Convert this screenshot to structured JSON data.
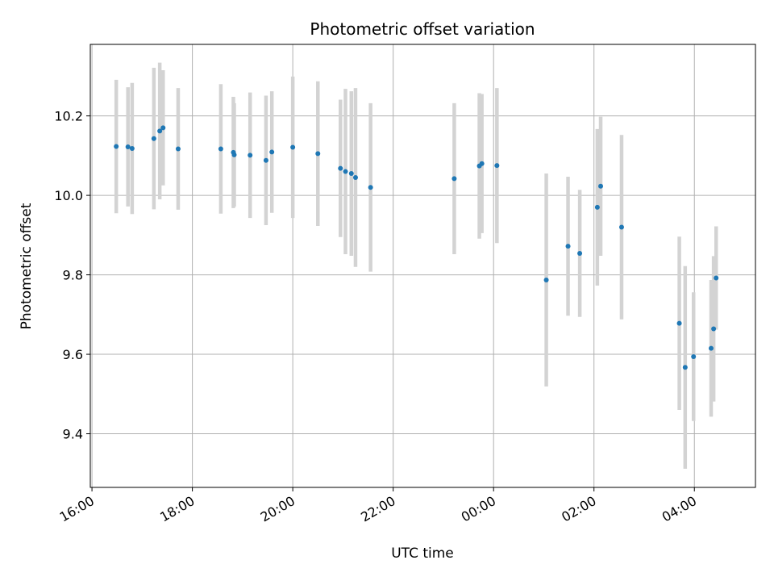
{
  "chart_data": {
    "type": "scatter",
    "title": "Photometric offset variation",
    "xlabel": "UTC time",
    "ylabel": "Photometric offset",
    "x_axis": "datetime",
    "xlim": [
      "15:58",
      "29:13"
    ],
    "ylim": [
      9.265,
      10.38
    ],
    "grid": true,
    "x_ticks": [
      {
        "value": "16:00",
        "label": "16:00"
      },
      {
        "value": "18:00",
        "label": "18:00"
      },
      {
        "value": "20:00",
        "label": "20:00"
      },
      {
        "value": "22:00",
        "label": "22:00"
      },
      {
        "value": "24:00",
        "label": "00:00"
      },
      {
        "value": "26:00",
        "label": "02:00"
      },
      {
        "value": "28:00",
        "label": "04:00"
      }
    ],
    "y_ticks": [
      9.4,
      9.6,
      9.8,
      10.0,
      10.2
    ],
    "point_color": "#1f77b4",
    "errorbar_color": "#d3d3d3",
    "points": [
      {
        "x": "16:29",
        "y": 10.123,
        "yerr": 0.168
      },
      {
        "x": "16:43",
        "y": 10.122,
        "yerr": 0.15
      },
      {
        "x": "16:48",
        "y": 10.118,
        "yerr": 0.165
      },
      {
        "x": "17:14",
        "y": 10.143,
        "yerr": 0.178
      },
      {
        "x": "17:21",
        "y": 10.162,
        "yerr": 0.172
      },
      {
        "x": "17:25",
        "y": 10.17,
        "yerr": 0.145
      },
      {
        "x": "17:43",
        "y": 10.117,
        "yerr": 0.153
      },
      {
        "x": "18:34",
        "y": 10.117,
        "yerr": 0.163
      },
      {
        "x": "18:49",
        "y": 10.108,
        "yerr": 0.14
      },
      {
        "x": "18:50",
        "y": 10.102,
        "yerr": 0.13
      },
      {
        "x": "19:09",
        "y": 10.101,
        "yerr": 0.158
      },
      {
        "x": "19:28",
        "y": 10.088,
        "yerr": 0.163
      },
      {
        "x": "19:35",
        "y": 10.109,
        "yerr": 0.153
      },
      {
        "x": "20:00",
        "y": 10.121,
        "yerr": 0.178
      },
      {
        "x": "20:30",
        "y": 10.105,
        "yerr": 0.182
      },
      {
        "x": "20:57",
        "y": 10.068,
        "yerr": 0.173
      },
      {
        "x": "21:03",
        "y": 10.06,
        "yerr": 0.208
      },
      {
        "x": "21:10",
        "y": 10.055,
        "yerr": 0.207
      },
      {
        "x": "21:15",
        "y": 10.045,
        "yerr": 0.225
      },
      {
        "x": "21:33",
        "y": 10.02,
        "yerr": 0.212
      },
      {
        "x": "23:13",
        "y": 10.042,
        "yerr": 0.19
      },
      {
        "x": "23:43",
        "y": 10.074,
        "yerr": 0.183
      },
      {
        "x": "23:46",
        "y": 10.08,
        "yerr": 0.175
      },
      {
        "x": "24:04",
        "y": 10.075,
        "yerr": 0.195
      },
      {
        "x": "25:03",
        "y": 9.787,
        "yerr": 0.268
      },
      {
        "x": "25:29",
        "y": 9.872,
        "yerr": 0.175
      },
      {
        "x": "25:43",
        "y": 9.854,
        "yerr": 0.16
      },
      {
        "x": "26:04",
        "y": 9.97,
        "yerr": 0.197
      },
      {
        "x": "26:08",
        "y": 10.023,
        "yerr": 0.175
      },
      {
        "x": "26:33",
        "y": 9.92,
        "yerr": 0.232
      },
      {
        "x": "27:42",
        "y": 9.678,
        "yerr": 0.218
      },
      {
        "x": "27:49",
        "y": 9.567,
        "yerr": 0.255
      },
      {
        "x": "27:59",
        "y": 9.594,
        "yerr": 0.162
      },
      {
        "x": "28:20",
        "y": 9.615,
        "yerr": 0.172
      },
      {
        "x": "28:23",
        "y": 9.664,
        "yerr": 0.183
      },
      {
        "x": "28:26",
        "y": 9.792,
        "yerr": 0.13
      }
    ]
  }
}
